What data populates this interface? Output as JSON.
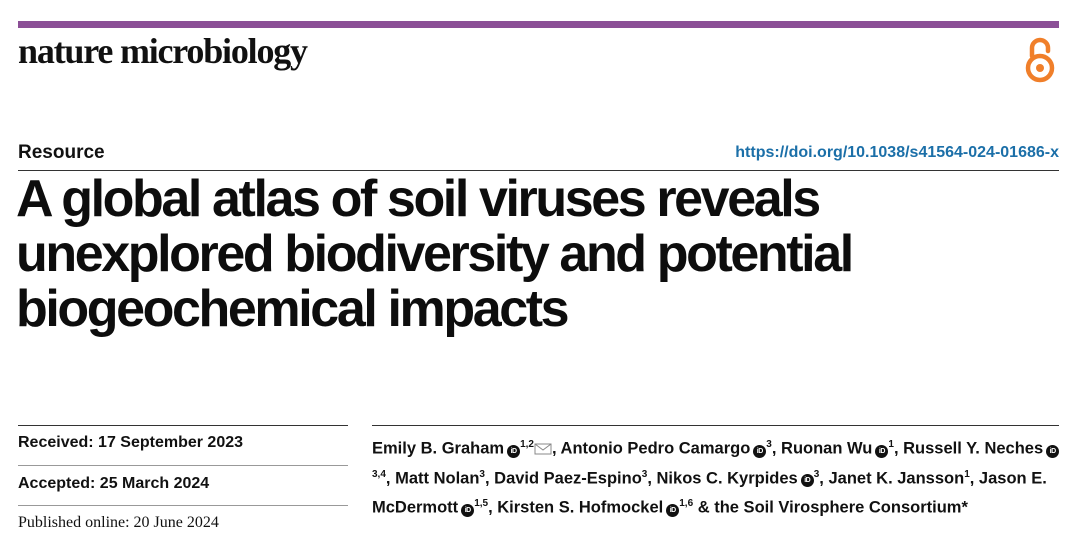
{
  "journal": {
    "name": "nature microbiology",
    "accent_color": "#8b4f96",
    "open_access_icon": "open-access-icon",
    "open_access_color": "#f07f2a"
  },
  "article": {
    "type": "Resource",
    "doi": "https://doi.org/10.1038/s41564-024-01686-x",
    "doi_color": "#1b6fa8",
    "title_lines": [
      "A global atlas of soil viruses reveals",
      "unexplored biodiversity and potential",
      "biogeochemical impacts"
    ]
  },
  "dates": {
    "received": "Received: 17 September 2023",
    "accepted": "Accepted: 25 March 2024",
    "published": "Published online: 20 June 2024"
  },
  "authors": [
    {
      "name": "Emily B. Graham",
      "orcid": true,
      "sup": "1,2",
      "corresponding": true,
      "sep": ", "
    },
    {
      "name": "Antonio Pedro Camargo",
      "orcid": true,
      "sup": "3",
      "sep": ", "
    },
    {
      "name": "Ruonan Wu",
      "orcid": true,
      "sup": "1",
      "sep": ", "
    },
    {
      "name": "Russell Y. Neches",
      "orcid": true,
      "sup": "3,4",
      "sep": ", "
    },
    {
      "name": "Matt Nolan",
      "orcid": false,
      "sup": "3",
      "sep": ", "
    },
    {
      "name": "David Paez-Espino",
      "orcid": false,
      "sup": "3",
      "sep": ", "
    },
    {
      "name": "Nikos C. Kyrpides",
      "orcid": true,
      "sup": "3",
      "sep": ", "
    },
    {
      "name": "Janet K. Jansson",
      "orcid": false,
      "sup": "1",
      "sep": ", "
    },
    {
      "name": "Jason E. McDermott",
      "orcid": true,
      "sup": "1,5",
      "sep": ", "
    },
    {
      "name": "Kirsten S. Hofmockel",
      "orcid": true,
      "sup": "1,6",
      "sep": " & the Soil Virosphere Consortium*"
    }
  ],
  "icons": {
    "orcid": "orcid-icon",
    "orcid_text": "iD",
    "mail": "mail-icon"
  }
}
